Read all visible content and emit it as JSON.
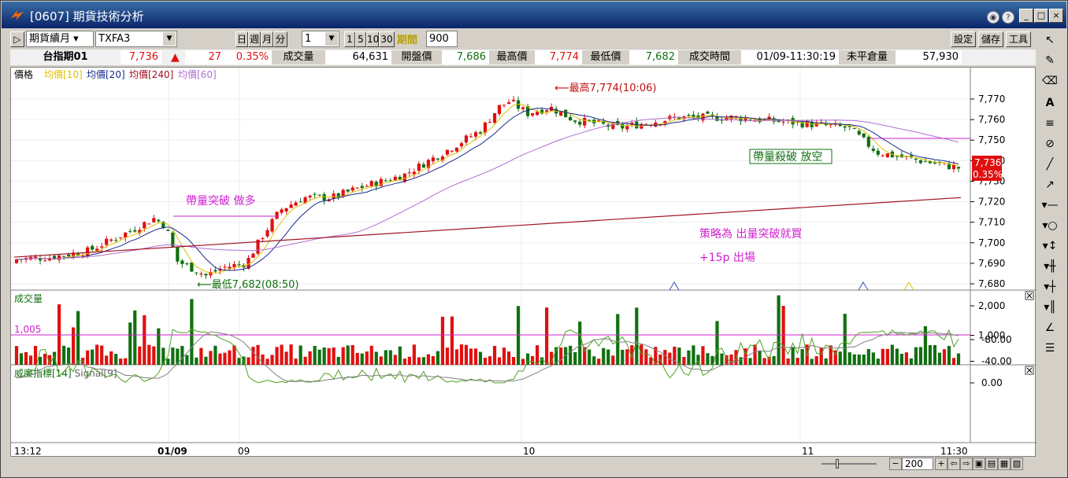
{
  "window": {
    "title": "[0607] 期貨技術分析"
  },
  "toolbar": {
    "product": "期貨續月",
    "symbol": "TXFA3",
    "periods": [
      "日",
      "週",
      "月",
      "分"
    ],
    "interval": "1",
    "interval_opts": [
      "1",
      "5",
      "10",
      "30"
    ],
    "period_label": "期間",
    "period_value": "900",
    "buttons": [
      "設定",
      "儲存",
      "工具"
    ]
  },
  "quote": {
    "name": "台指期01",
    "last": "7,736",
    "change": "27",
    "pct": "0.35%",
    "vol_label": "成交量",
    "vol": "64,631",
    "open_label": "開盤價",
    "open": "7,686",
    "high_label": "最高價",
    "high": "7,774",
    "low_label": "最低價",
    "low": "7,682",
    "time_label": "成交時間",
    "time": "01/09-11:30:19",
    "oi_label": "未平倉量",
    "oi": "57,930"
  },
  "price_panel": {
    "title": "價格",
    "ma_legend": [
      {
        "label": "均價[10]",
        "color": "#e0c000"
      },
      {
        "label": "均價[20]",
        "color": "#1a2a8a"
      },
      {
        "label": "均價[240]",
        "color": "#a01020"
      },
      {
        "label": "均價[60]",
        "color": "#b070d0"
      }
    ],
    "y_ticks": [
      "7,770",
      "7,760",
      "7,750",
      "7,740",
      "7,730",
      "7,720",
      "7,710",
      "7,700",
      "7,690",
      "7,680"
    ],
    "last_badge": {
      "price": "7,736",
      "pct": "0.35%"
    },
    "annotations": {
      "high": "最高7,774(10:06)",
      "low": "最低7,682(08:50)",
      "breakout": "帶量突破  做多",
      "breakdown": "帶量殺破  放空",
      "strategy": "策略為  出量突破就買",
      "exit": "+15p 出場"
    }
  },
  "volume_panel": {
    "title": "成交量",
    "ref_value": "1,005",
    "y_ticks": [
      "2,000",
      "1,000"
    ]
  },
  "wr_panel": {
    "title": "威廉指標[14]",
    "signal": "Signal[9]",
    "y_ticks": [
      "0.00",
      "-40.00",
      "-80.00"
    ]
  },
  "x_axis": [
    "13:12",
    "01/09",
    "09",
    "10",
    "11",
    "11:30"
  ],
  "zoom": "200",
  "chart_data": {
    "type": "candlestick",
    "price_ylim": [
      7680,
      7775
    ],
    "open": 7686,
    "high": 7774,
    "low": 7682,
    "last": 7736,
    "volume_ylim": [
      0,
      2100
    ],
    "wr_ylim": [
      -100,
      10
    ]
  },
  "colors": {
    "up": "#e01010",
    "down": "#107010",
    "title_bg": "#0a246a"
  }
}
